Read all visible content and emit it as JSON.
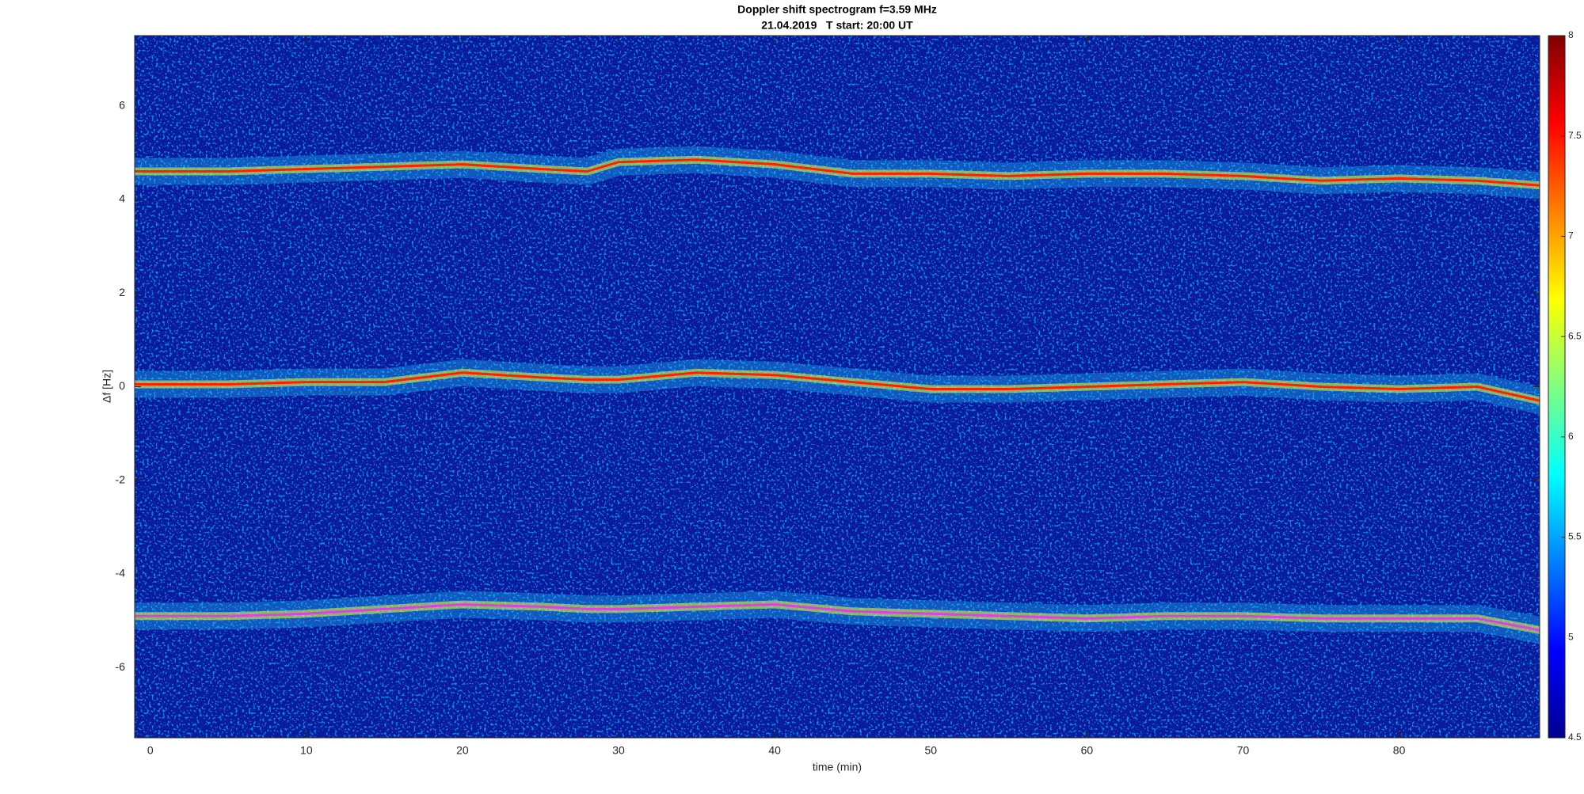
{
  "chart_data": {
    "type": "line",
    "title": "Doppler shift spectrogram f=3.59 MHz",
    "subtitle": "21.04.2019   T start: 20:00 UT",
    "x_label": "time (min)",
    "y_label": "Δf [Hz]",
    "x": [
      -1,
      0,
      5,
      10,
      15,
      20,
      25,
      28,
      30,
      35,
      40,
      45,
      50,
      55,
      60,
      65,
      70,
      75,
      80,
      85,
      89
    ],
    "series": [
      {
        "color": "#ff2000",
        "values": [
          4.6,
          4.6,
          4.6,
          4.65,
          4.7,
          4.75,
          4.65,
          4.6,
          4.8,
          4.85,
          4.75,
          4.55,
          4.55,
          4.5,
          4.55,
          4.55,
          4.5,
          4.4,
          4.45,
          4.4,
          4.3
        ]
      },
      {
        "color": "#ff2000",
        "values": [
          0.05,
          0.05,
          0.05,
          0.1,
          0.1,
          0.3,
          0.2,
          0.15,
          0.15,
          0.3,
          0.25,
          0.1,
          -0.05,
          -0.05,
          0,
          0.05,
          0.1,
          0,
          -0.05,
          0,
          -0.3
        ]
      },
      {
        "color": "#e040e0",
        "values": [
          -4.9,
          -4.9,
          -4.9,
          -4.85,
          -4.75,
          -4.65,
          -4.7,
          -4.75,
          -4.75,
          -4.7,
          -4.65,
          -4.8,
          -4.85,
          -4.9,
          -4.95,
          -4.9,
          -4.9,
          -4.95,
          -4.95,
          -4.95,
          -5.2
        ]
      }
    ],
    "xlim": [
      -1,
      89
    ],
    "ylim": [
      -7.5,
      7.5
    ],
    "xticks": [
      0,
      10,
      20,
      30,
      40,
      50,
      60,
      70,
      80
    ],
    "yticks": [
      -6,
      -4,
      -2,
      0,
      2,
      4,
      6
    ],
    "grid": false,
    "colorbar": {
      "lim": [
        4.5,
        8
      ],
      "ticks": [
        4.5,
        5,
        5.5,
        6,
        6.5,
        7,
        7.5,
        8
      ]
    }
  }
}
